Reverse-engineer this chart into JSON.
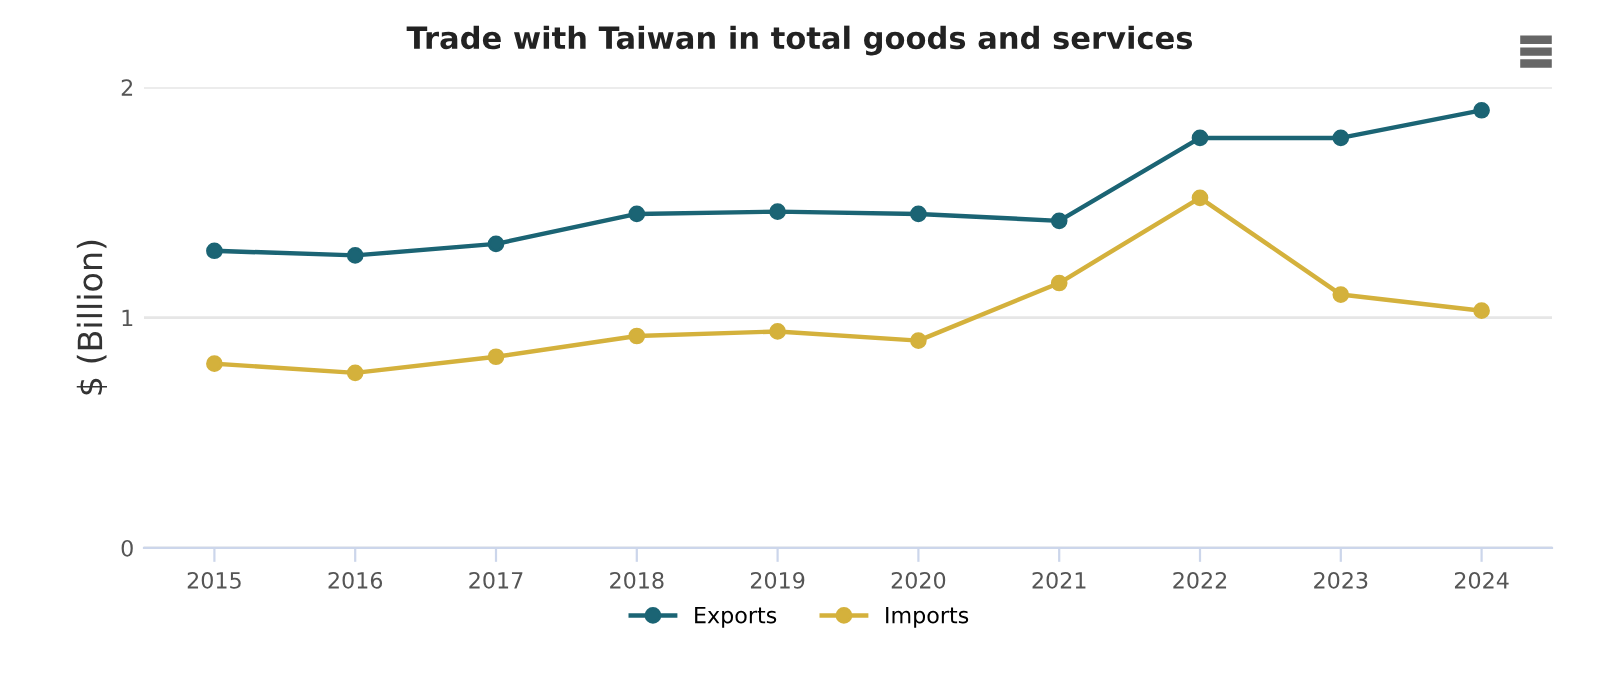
{
  "chart_data": {
    "type": "line",
    "title": "Trade with Taiwan in total goods and services",
    "ylabel": "$ (Billion)",
    "categories": [
      "2015",
      "2016",
      "2017",
      "2018",
      "2019",
      "2020",
      "2021",
      "2022",
      "2023",
      "2024"
    ],
    "series": [
      {
        "name": "Exports",
        "color": "#1b6474",
        "values": [
          1.29,
          1.27,
          1.32,
          1.45,
          1.46,
          1.45,
          1.42,
          1.78,
          1.78,
          1.9
        ]
      },
      {
        "name": "Imports",
        "color": "#d4b13c",
        "values": [
          0.8,
          0.76,
          0.83,
          0.92,
          0.94,
          0.9,
          1.15,
          1.52,
          1.1,
          1.03
        ]
      }
    ],
    "ylim": [
      0,
      2
    ],
    "yticks": [
      0,
      1,
      2
    ],
    "grid": "y",
    "legend": "bottom",
    "marker": "circle",
    "line_style": "solid"
  }
}
